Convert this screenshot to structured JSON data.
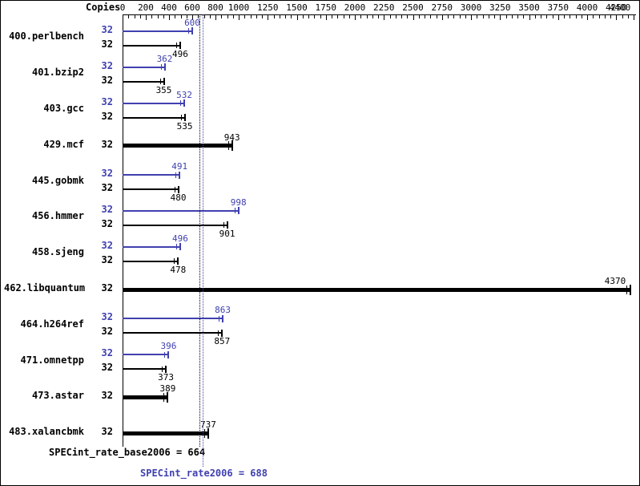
{
  "colors": {
    "peak": "#4040b0",
    "base": "#000000",
    "axis": "#000000"
  },
  "chart_data": {
    "type": "bar",
    "orientation": "horizontal",
    "copies_header": "Copies",
    "axis": {
      "min": 0,
      "max": 4400,
      "major_ticks": [
        0,
        200,
        400,
        600,
        800,
        1000,
        1250,
        1500,
        1750,
        2000,
        2250,
        2500,
        2750,
        3000,
        3250,
        3500,
        3750,
        4000,
        4250,
        4400
      ],
      "minor_step": 50,
      "grid": false
    },
    "benchmarks": [
      {
        "name": "400.perlbench",
        "rows": [
          {
            "kind": "peak",
            "copies": 32,
            "value": 600
          },
          {
            "kind": "base",
            "copies": 32,
            "value": 496
          }
        ]
      },
      {
        "name": "401.bzip2",
        "rows": [
          {
            "kind": "peak",
            "copies": 32,
            "value": 362
          },
          {
            "kind": "base",
            "copies": 32,
            "value": 355
          }
        ]
      },
      {
        "name": "403.gcc",
        "rows": [
          {
            "kind": "peak",
            "copies": 32,
            "value": 532
          },
          {
            "kind": "base",
            "copies": 32,
            "value": 535
          }
        ]
      },
      {
        "name": "429.mcf",
        "rows": [
          {
            "kind": "single",
            "copies": 32,
            "value": 943
          }
        ]
      },
      {
        "name": "445.gobmk",
        "rows": [
          {
            "kind": "peak",
            "copies": 32,
            "value": 491
          },
          {
            "kind": "base",
            "copies": 32,
            "value": 480
          }
        ]
      },
      {
        "name": "456.hmmer",
        "rows": [
          {
            "kind": "peak",
            "copies": 32,
            "value": 998
          },
          {
            "kind": "base",
            "copies": 32,
            "value": 901
          }
        ]
      },
      {
        "name": "458.sjeng",
        "rows": [
          {
            "kind": "peak",
            "copies": 32,
            "value": 496
          },
          {
            "kind": "base",
            "copies": 32,
            "value": 478
          }
        ]
      },
      {
        "name": "462.libquantum",
        "rows": [
          {
            "kind": "single",
            "copies": 32,
            "value": 4370
          }
        ]
      },
      {
        "name": "464.h264ref",
        "rows": [
          {
            "kind": "peak",
            "copies": 32,
            "value": 863
          },
          {
            "kind": "base",
            "copies": 32,
            "value": 857
          }
        ]
      },
      {
        "name": "471.omnetpp",
        "rows": [
          {
            "kind": "peak",
            "copies": 32,
            "value": 396
          },
          {
            "kind": "base",
            "copies": 32,
            "value": 373
          }
        ]
      },
      {
        "name": "473.astar",
        "rows": [
          {
            "kind": "single",
            "copies": 32,
            "value": 389
          }
        ]
      },
      {
        "name": "483.xalancbmk",
        "rows": [
          {
            "kind": "single",
            "copies": 32,
            "value": 737
          }
        ]
      }
    ],
    "reference_lines": [
      {
        "kind": "base",
        "value": 664
      },
      {
        "kind": "peak",
        "value": 688
      }
    ],
    "summary": {
      "base_label": "SPECint_rate_base2006 = 664",
      "peak_label": "SPECint_rate2006 = 688"
    }
  }
}
